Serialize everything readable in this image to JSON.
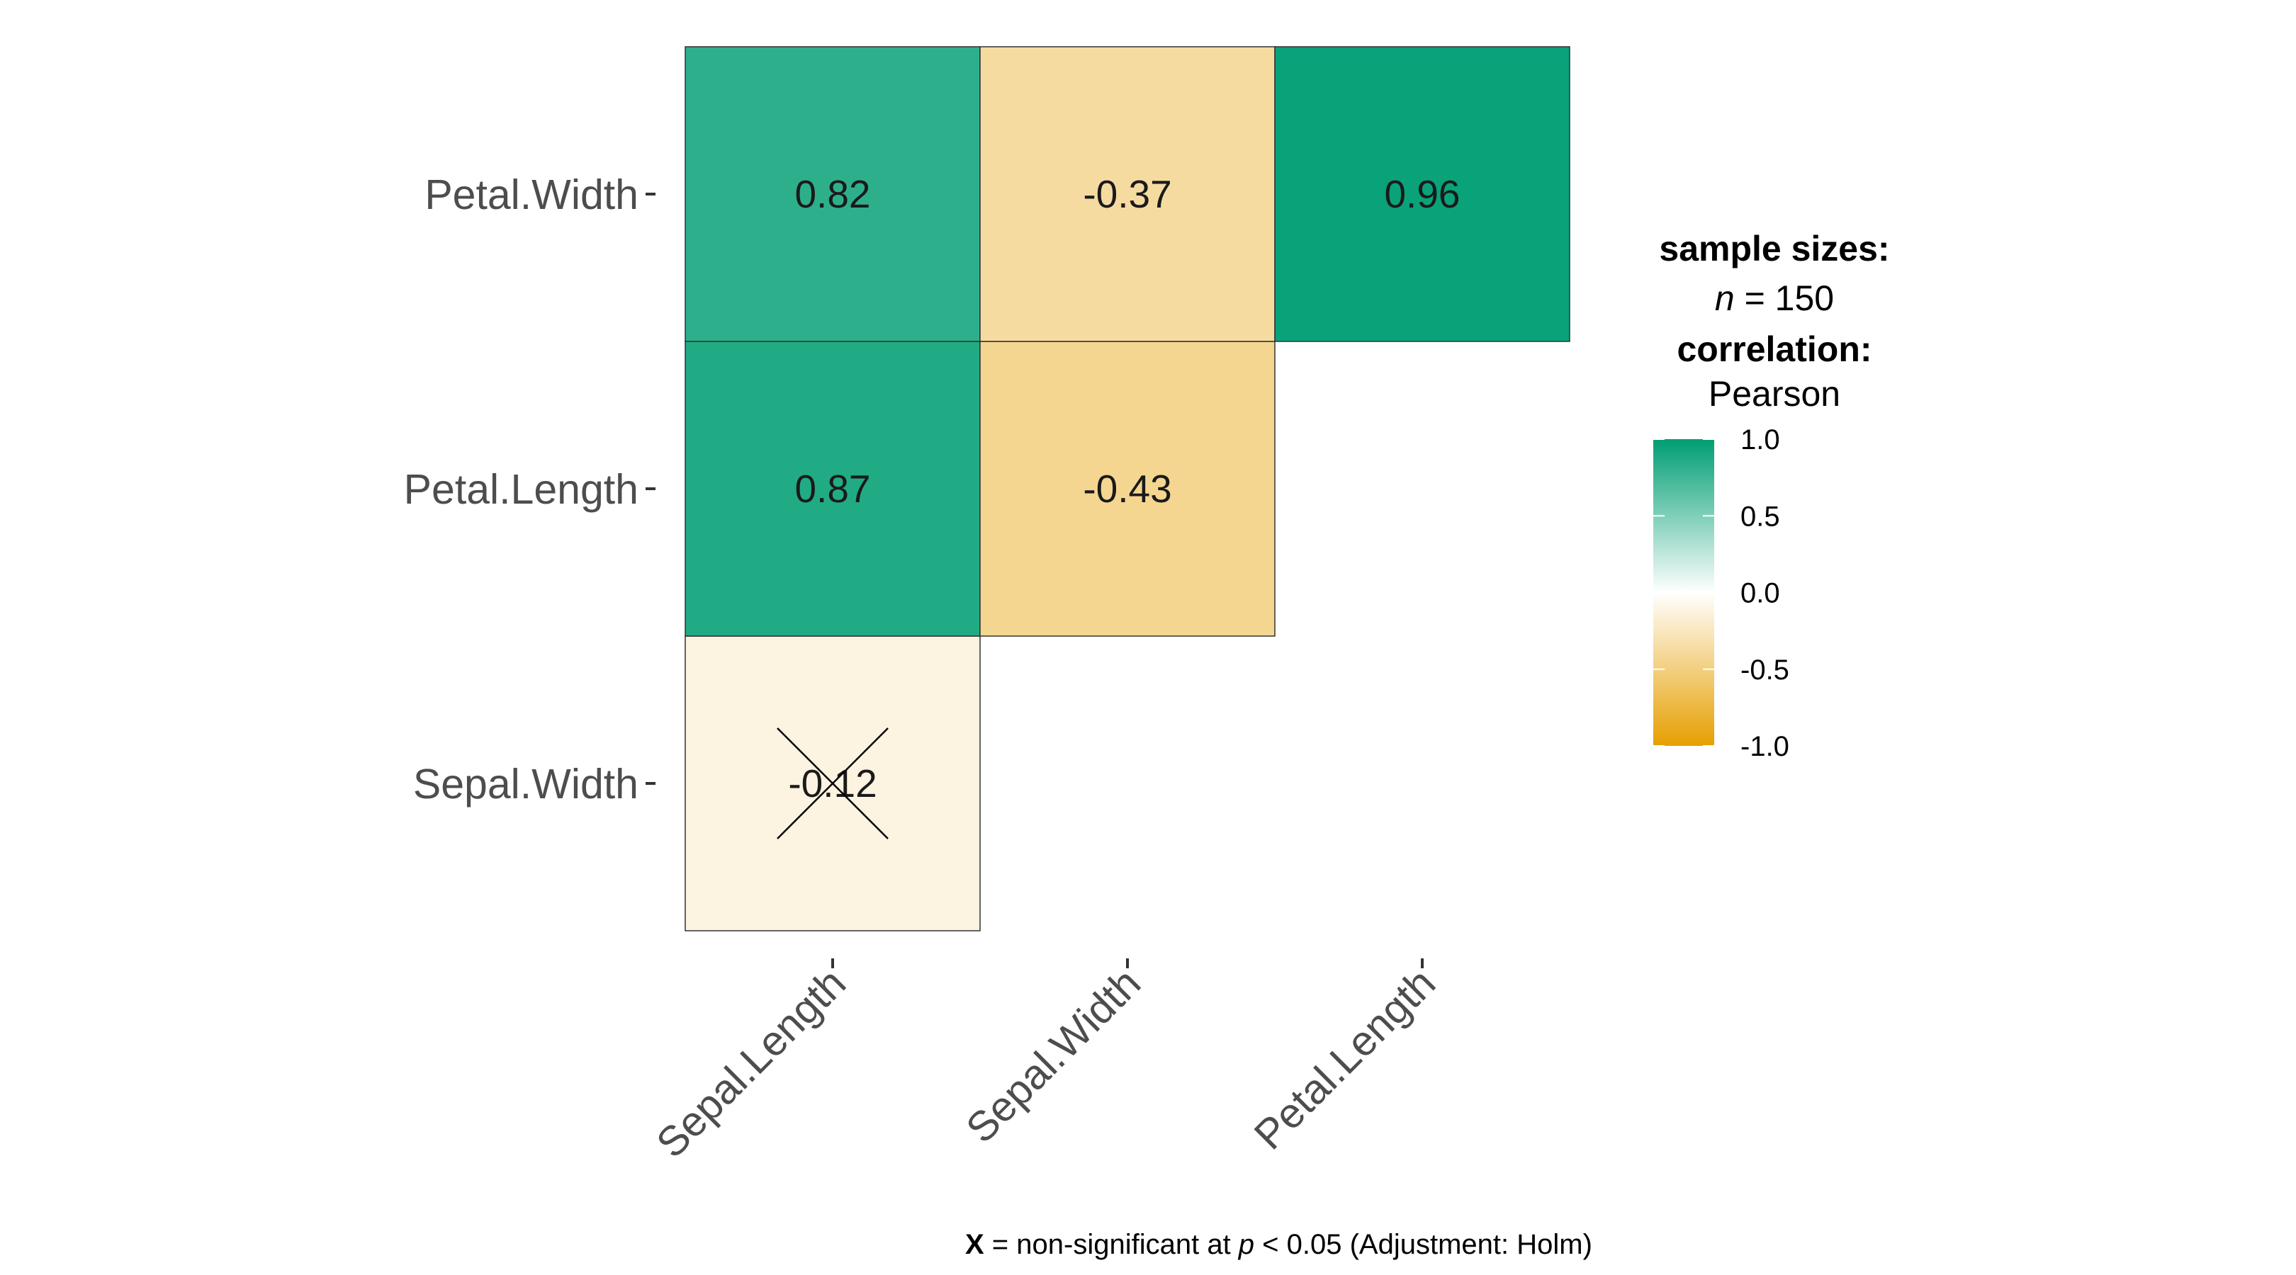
{
  "chart_data": {
    "type": "heatmap",
    "x_categories": [
      "Sepal.Length",
      "Sepal.Width",
      "Petal.Length"
    ],
    "y_categories": [
      "Sepal.Width",
      "Petal.Length",
      "Petal.Width"
    ],
    "cells": [
      {
        "x": "Sepal.Length",
        "y": "Sepal.Width",
        "value": -0.12,
        "label": "-0.12",
        "significant": false
      },
      {
        "x": "Sepal.Length",
        "y": "Petal.Length",
        "value": 0.87,
        "label": "0.87",
        "significant": true
      },
      {
        "x": "Sepal.Width",
        "y": "Petal.Length",
        "value": -0.43,
        "label": "-0.43",
        "significant": true
      },
      {
        "x": "Sepal.Length",
        "y": "Petal.Width",
        "value": 0.82,
        "label": "0.82",
        "significant": true
      },
      {
        "x": "Sepal.Width",
        "y": "Petal.Width",
        "value": -0.37,
        "label": "-0.37",
        "significant": true
      },
      {
        "x": "Petal.Length",
        "y": "Petal.Width",
        "value": 0.96,
        "label": "0.96",
        "significant": true
      }
    ],
    "colors": {
      "low": "#E69F00",
      "mid": "#FFFFFF",
      "high": "#009E73"
    },
    "value_range": [
      -1,
      1
    ],
    "legend": {
      "title1": "sample sizes:",
      "n_symbol": "n",
      "n_text": " = 150",
      "title2": "correlation:",
      "method": "Pearson",
      "ticks": [
        "1.0",
        "0.5",
        "0.0",
        "-0.5",
        "-1.0"
      ]
    },
    "caption": {
      "x_symbol": "X",
      "part1": " = non-significant at ",
      "p_symbol": "p",
      "part2": " < 0.05 (Adjustment: Holm)"
    }
  }
}
